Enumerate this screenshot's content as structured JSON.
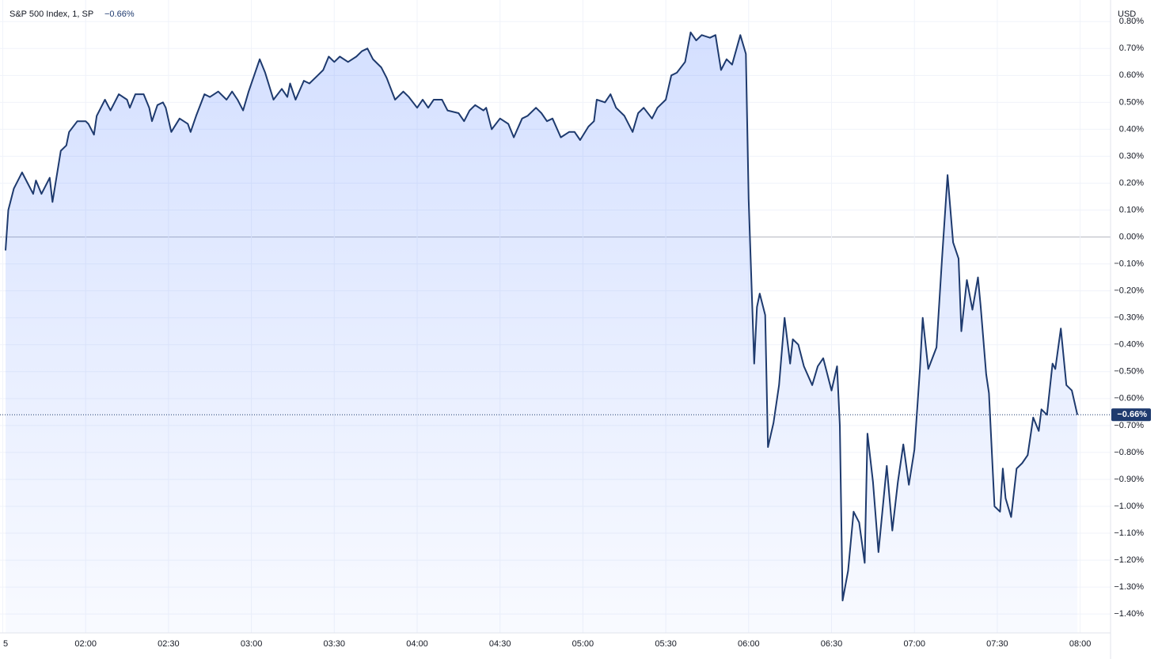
{
  "chart_data": {
    "type": "line",
    "title": "S&P 500 Index, 1, SP",
    "change_label": "−0.66%",
    "unit_label": "USD",
    "x": [
      "01:31",
      "01:32",
      "01:34",
      "01:37",
      "01:39",
      "01:41",
      "01:42",
      "01:44",
      "01:47",
      "01:48",
      "01:51",
      "01:53",
      "01:54",
      "01:57",
      "02:00",
      "02:01",
      "02:03",
      "02:04",
      "02:07",
      "02:09",
      "02:12",
      "02:15",
      "02:16",
      "02:18",
      "02:21",
      "02:23",
      "02:24",
      "02:26",
      "02:28",
      "02:29",
      "02:31",
      "02:34",
      "02:37",
      "02:38",
      "02:40",
      "02:43",
      "02:45",
      "02:48",
      "02:51",
      "02:53",
      "02:55",
      "02:57",
      "02:59",
      "03:01",
      "03:03",
      "03:05",
      "03:08",
      "03:11",
      "03:13",
      "03:14",
      "03:16",
      "03:19",
      "03:21",
      "03:24",
      "03:26",
      "03:28",
      "03:30",
      "03:32",
      "03:35",
      "03:38",
      "03:40",
      "03:42",
      "03:44",
      "03:47",
      "03:49",
      "03:52",
      "03:55",
      "03:57",
      "04:00",
      "04:02",
      "04:04",
      "04:06",
      "04:09",
      "04:11",
      "04:15",
      "04:17",
      "04:19",
      "04:21",
      "04:24",
      "04:25",
      "04:27",
      "04:30",
      "04:33",
      "04:35",
      "04:38",
      "04:40",
      "04:43",
      "04:45",
      "04:47",
      "04:49",
      "04:52",
      "04:55",
      "04:57",
      "04:59",
      "05:02",
      "05:04",
      "05:05",
      "05:08",
      "05:10",
      "05:12",
      "05:15",
      "05:18",
      "05:20",
      "05:22",
      "05:25",
      "05:27",
      "05:30",
      "05:32",
      "05:34",
      "05:37",
      "05:39",
      "05:41",
      "05:43",
      "05:46",
      "05:48",
      "05:50",
      "05:52",
      "05:54",
      "05:57",
      "05:59",
      "06:00",
      "06:02",
      "06:03",
      "06:04",
      "06:06",
      "06:07",
      "06:09",
      "06:11",
      "06:13",
      "06:15",
      "06:16",
      "06:18",
      "06:20",
      "06:23",
      "06:25",
      "06:27",
      "06:30",
      "06:32",
      "06:33",
      "06:34",
      "06:36",
      "06:38",
      "06:40",
      "06:42",
      "06:43",
      "06:45",
      "06:47",
      "06:50",
      "06:52",
      "06:54",
      "06:56",
      "06:58",
      "07:00",
      "07:02",
      "07:03",
      "07:05",
      "07:08",
      "07:10",
      "07:12",
      "07:14",
      "07:16",
      "07:17",
      "07:19",
      "07:21",
      "07:23",
      "07:24",
      "07:26",
      "07:27",
      "07:29",
      "07:31",
      "07:32",
      "07:33",
      "07:35",
      "07:37",
      "07:39",
      "07:41",
      "07:43",
      "07:45",
      "07:46",
      "07:48",
      "07:50",
      "07:51",
      "07:53",
      "07:55",
      "07:57",
      "07:59"
    ],
    "series": [
      {
        "name": "S&P 500 Index",
        "color": "#1e3a6e",
        "values": [
          -0.05,
          0.1,
          0.18,
          0.24,
          0.2,
          0.16,
          0.21,
          0.16,
          0.22,
          0.13,
          0.32,
          0.34,
          0.39,
          0.43,
          0.43,
          0.42,
          0.38,
          0.45,
          0.51,
          0.47,
          0.53,
          0.51,
          0.48,
          0.53,
          0.53,
          0.48,
          0.43,
          0.49,
          0.5,
          0.48,
          0.39,
          0.44,
          0.42,
          0.39,
          0.45,
          0.53,
          0.52,
          0.54,
          0.51,
          0.54,
          0.51,
          0.47,
          0.54,
          0.6,
          0.66,
          0.61,
          0.51,
          0.55,
          0.52,
          0.57,
          0.51,
          0.58,
          0.57,
          0.6,
          0.62,
          0.67,
          0.65,
          0.67,
          0.65,
          0.67,
          0.69,
          0.7,
          0.66,
          0.63,
          0.59,
          0.51,
          0.54,
          0.52,
          0.48,
          0.51,
          0.48,
          0.51,
          0.51,
          0.47,
          0.46,
          0.43,
          0.47,
          0.49,
          0.47,
          0.48,
          0.4,
          0.44,
          0.42,
          0.37,
          0.44,
          0.45,
          0.48,
          0.46,
          0.43,
          0.44,
          0.37,
          0.39,
          0.39,
          0.36,
          0.41,
          0.43,
          0.51,
          0.5,
          0.53,
          0.48,
          0.45,
          0.39,
          0.46,
          0.48,
          0.44,
          0.48,
          0.51,
          0.6,
          0.61,
          0.65,
          0.76,
          0.73,
          0.75,
          0.74,
          0.75,
          0.62,
          0.66,
          0.64,
          0.75,
          0.68,
          0.14,
          -0.47,
          -0.26,
          -0.21,
          -0.29,
          -0.78,
          -0.69,
          -0.55,
          -0.3,
          -0.47,
          -0.38,
          -0.4,
          -0.48,
          -0.55,
          -0.48,
          -0.45,
          -0.57,
          -0.48,
          -0.7,
          -1.35,
          -1.24,
          -1.02,
          -1.06,
          -1.21,
          -0.73,
          -0.91,
          -1.17,
          -0.85,
          -1.09,
          -0.91,
          -0.77,
          -0.92,
          -0.79,
          -0.49,
          -0.3,
          -0.49,
          -0.41,
          -0.08,
          0.23,
          -0.02,
          -0.08,
          -0.35,
          -0.16,
          -0.27,
          -0.15,
          -0.26,
          -0.51,
          -0.58,
          -1.0,
          -1.02,
          -0.86,
          -0.97,
          -1.04,
          -0.86,
          -0.84,
          -0.81,
          -0.67,
          -0.72,
          -0.64,
          -0.66,
          -0.47,
          -0.49,
          -0.34,
          -0.55,
          -0.57,
          -0.66
        ]
      }
    ],
    "last_value": {
      "value": -0.66,
      "label": "−0.66%"
    },
    "xlim": [
      "01:29",
      "08:11"
    ],
    "xticks": [
      {
        "value": "01:30",
        "label": "5"
      },
      "02:00",
      "02:30",
      "03:00",
      "03:30",
      "04:00",
      "04:30",
      "05:00",
      "05:30",
      "06:00",
      "06:30",
      "07:00",
      "07:30",
      "08:00"
    ],
    "ylim": [
      -1.47,
      0.88
    ],
    "yticks": [
      {
        "value": 0.8,
        "label": "0.80%"
      },
      {
        "value": 0.7,
        "label": "0.70%"
      },
      {
        "value": 0.6,
        "label": "0.60%"
      },
      {
        "value": 0.5,
        "label": "0.50%"
      },
      {
        "value": 0.4,
        "label": "0.40%"
      },
      {
        "value": 0.3,
        "label": "0.30%"
      },
      {
        "value": 0.2,
        "label": "0.20%"
      },
      {
        "value": 0.1,
        "label": "0.10%"
      },
      {
        "value": 0,
        "label": "0.00%"
      },
      {
        "value": -0.1,
        "label": "−0.10%"
      },
      {
        "value": -0.2,
        "label": "−0.20%"
      },
      {
        "value": -0.3,
        "label": "−0.30%"
      },
      {
        "value": -0.4,
        "label": "−0.40%"
      },
      {
        "value": -0.5,
        "label": "−0.50%"
      },
      {
        "value": -0.6,
        "label": "−0.60%"
      },
      {
        "value": -0.7,
        "label": "−0.70%"
      },
      {
        "value": -0.8,
        "label": "−0.80%"
      },
      {
        "value": -0.9,
        "label": "−0.90%"
      },
      {
        "value": -1.0,
        "label": "−1.00%"
      },
      {
        "value": -1.1,
        "label": "−1.10%"
      },
      {
        "value": -1.2,
        "label": "−1.20%"
      },
      {
        "value": -1.3,
        "label": "−1.30%"
      },
      {
        "value": -1.4,
        "label": "−1.40%"
      }
    ],
    "grid": true,
    "area_fill": true
  }
}
